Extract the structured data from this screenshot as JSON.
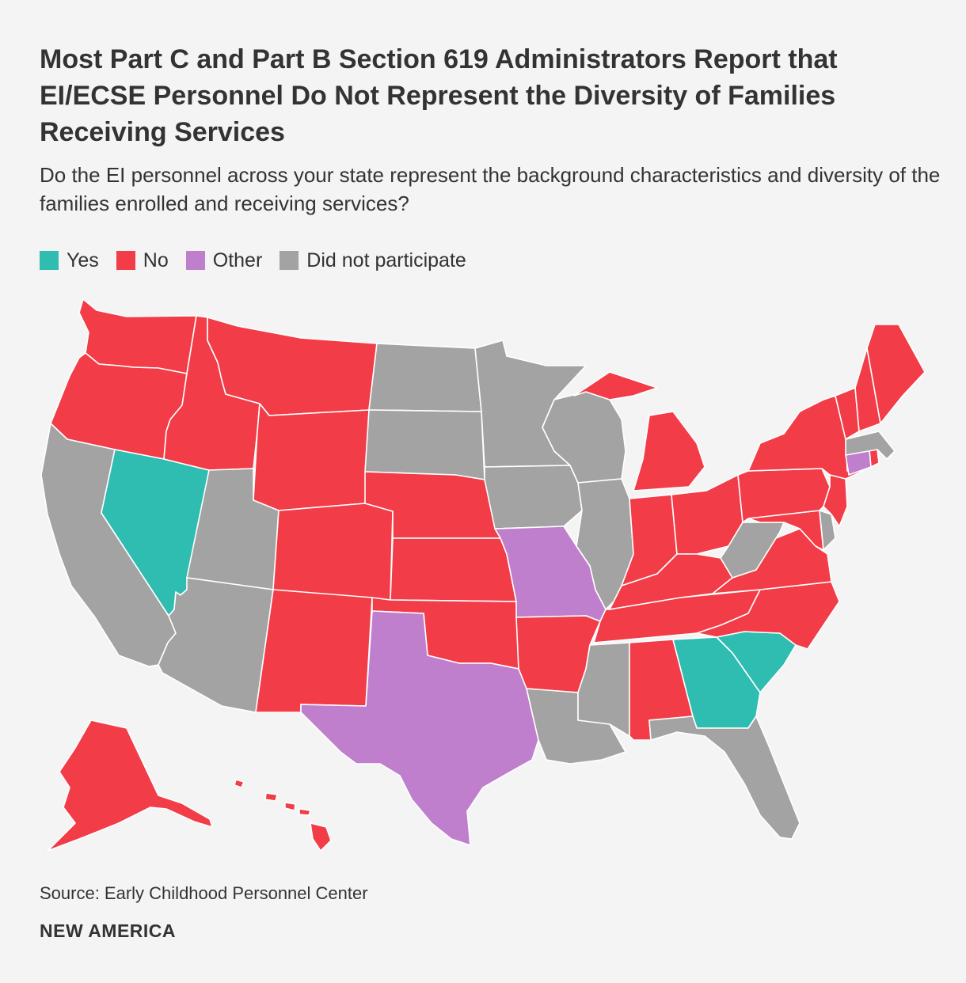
{
  "title": "Most Part C and Part B Section 619 Administrators Report that EI/ECSE Personnel Do Not Represent the Diversity of Families Receiving Services",
  "subtitle": "Do the EI personnel across your state represent the background characteristics and diversity of the families enrolled and receiving services?",
  "legend": [
    {
      "label": "Yes",
      "color": "#2fbdb2"
    },
    {
      "label": "No",
      "color": "#f23c47"
    },
    {
      "label": "Other",
      "color": "#bf7fcd"
    },
    {
      "label": "Did not participate",
      "color": "#a3a3a3"
    }
  ],
  "source": "Source: Early Childhood Personnel Center",
  "brand": "NEW AMERICA",
  "map_data": {
    "type": "choropleth",
    "states": [
      {
        "state": "WA",
        "category": "No"
      },
      {
        "state": "OR",
        "category": "No"
      },
      {
        "state": "CA",
        "category": "Did not participate"
      },
      {
        "state": "NV",
        "category": "Yes"
      },
      {
        "state": "ID",
        "category": "No"
      },
      {
        "state": "MT",
        "category": "No"
      },
      {
        "state": "WY",
        "category": "No"
      },
      {
        "state": "UT",
        "category": "Did not participate"
      },
      {
        "state": "AZ",
        "category": "Did not participate"
      },
      {
        "state": "CO",
        "category": "No"
      },
      {
        "state": "NM",
        "category": "No"
      },
      {
        "state": "ND",
        "category": "Did not participate"
      },
      {
        "state": "SD",
        "category": "Did not participate"
      },
      {
        "state": "NE",
        "category": "No"
      },
      {
        "state": "KS",
        "category": "No"
      },
      {
        "state": "OK",
        "category": "No"
      },
      {
        "state": "TX",
        "category": "Other"
      },
      {
        "state": "MN",
        "category": "Did not participate"
      },
      {
        "state": "IA",
        "category": "Did not participate"
      },
      {
        "state": "MO",
        "category": "Other"
      },
      {
        "state": "AR",
        "category": "No"
      },
      {
        "state": "LA",
        "category": "Did not participate"
      },
      {
        "state": "WI",
        "category": "Did not participate"
      },
      {
        "state": "IL",
        "category": "Did not participate"
      },
      {
        "state": "MI",
        "category": "No"
      },
      {
        "state": "IN",
        "category": "No"
      },
      {
        "state": "OH",
        "category": "No"
      },
      {
        "state": "KY",
        "category": "No"
      },
      {
        "state": "TN",
        "category": "No"
      },
      {
        "state": "MS",
        "category": "Did not participate"
      },
      {
        "state": "AL",
        "category": "No"
      },
      {
        "state": "GA",
        "category": "Yes"
      },
      {
        "state": "FL",
        "category": "Did not participate"
      },
      {
        "state": "SC",
        "category": "Yes"
      },
      {
        "state": "NC",
        "category": "No"
      },
      {
        "state": "VA",
        "category": "No"
      },
      {
        "state": "WV",
        "category": "Did not participate"
      },
      {
        "state": "MD",
        "category": "No"
      },
      {
        "state": "DE",
        "category": "Did not participate"
      },
      {
        "state": "PA",
        "category": "No"
      },
      {
        "state": "NJ",
        "category": "No"
      },
      {
        "state": "NY",
        "category": "No"
      },
      {
        "state": "CT",
        "category": "Other"
      },
      {
        "state": "RI",
        "category": "No"
      },
      {
        "state": "MA",
        "category": "Did not participate"
      },
      {
        "state": "VT",
        "category": "No"
      },
      {
        "state": "NH",
        "category": "No"
      },
      {
        "state": "ME",
        "category": "No"
      },
      {
        "state": "AK",
        "category": "No"
      },
      {
        "state": "HI",
        "category": "No"
      }
    ]
  }
}
